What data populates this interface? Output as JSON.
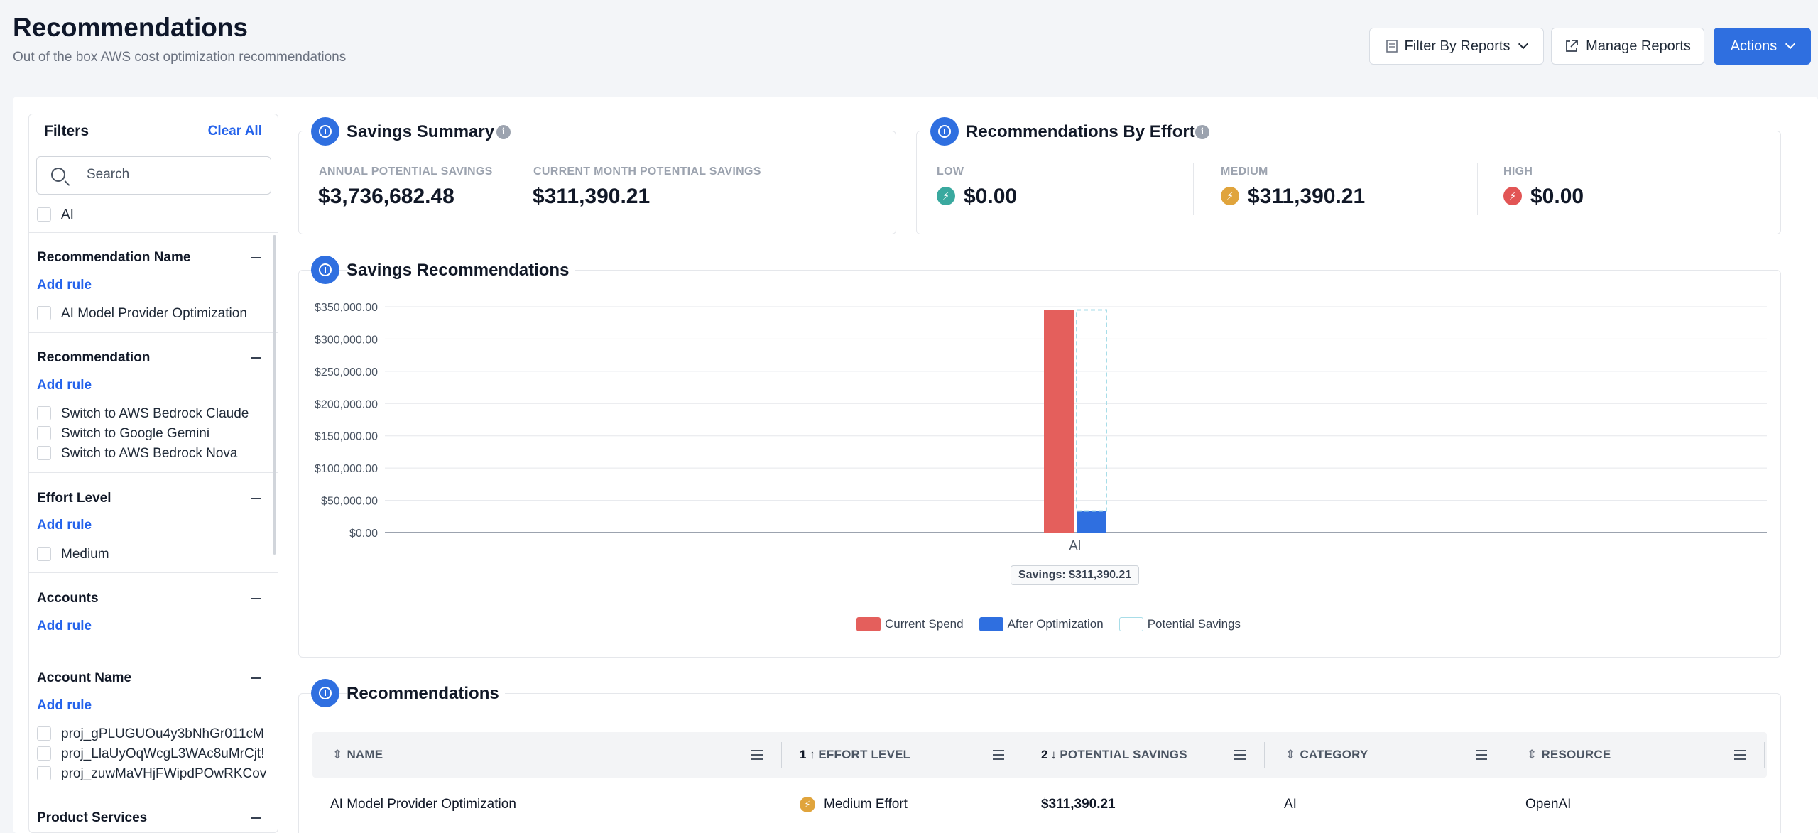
{
  "header": {
    "title": "Recommendations",
    "subtitle": "Out of the box AWS cost optimization recommendations",
    "filter_by_reports": "Filter By Reports",
    "manage_reports": "Manage Reports",
    "actions": "Actions"
  },
  "filters": {
    "title": "Filters",
    "clear_all": "Clear All",
    "search_placeholder": "Search",
    "top_option": "AI",
    "add_rule": "Add rule",
    "sections": {
      "recommendation_name": {
        "title": "Recommendation Name",
        "options": [
          "AI Model Provider Optimization"
        ]
      },
      "recommendation": {
        "title": "Recommendation",
        "options": [
          "Switch to AWS Bedrock Claude",
          "Switch to Google Gemini",
          "Switch to AWS Bedrock Nova"
        ]
      },
      "effort_level": {
        "title": "Effort Level",
        "options": [
          "Medium"
        ]
      },
      "accounts": {
        "title": "Accounts"
      },
      "account_name": {
        "title": "Account Name",
        "options": [
          "proj_gPLUGUOu4y3bNhGr011cM",
          "proj_LlaUyOqWcgL3WAc8uMrCjt!",
          "proj_zuwMaVHjFWipdPOwRKCov"
        ]
      },
      "product_services": {
        "title": "Product Services"
      }
    }
  },
  "savings_summary": {
    "title": "Savings Summary",
    "annual_label": "ANNUAL POTENTIAL SAVINGS",
    "annual_value": "$3,736,682.48",
    "month_label": "CURRENT MONTH POTENTIAL SAVINGS",
    "month_value": "$311,390.21"
  },
  "by_effort": {
    "title": "Recommendations By Effort",
    "low_label": "LOW",
    "low_value": "$0.00",
    "medium_label": "MEDIUM",
    "medium_value": "$311,390.21",
    "high_label": "HIGH",
    "high_value": "$0.00",
    "colors": {
      "low": "#3aa99f",
      "medium": "#e0a43c",
      "high": "#e25555"
    }
  },
  "savings_recs": {
    "title": "Savings Recommendations",
    "tooltip": "Savings: $311,390.21",
    "legend": [
      "Current Spend",
      "After Optimization",
      "Potential Savings"
    ]
  },
  "chart_data": {
    "type": "bar",
    "categories": [
      "AI"
    ],
    "series": [
      {
        "name": "Current Spend",
        "values": [
          345000
        ],
        "color": "#e45f5c"
      },
      {
        "name": "After Optimization",
        "values": [
          33600
        ],
        "color": "#2f6fe0"
      },
      {
        "name": "Potential Savings",
        "values": [
          311390.21
        ],
        "color": "#a8dde8"
      }
    ],
    "y_ticks": [
      "$0.00",
      "$50,000.00",
      "$100,000.00",
      "$150,000.00",
      "$200,000.00",
      "$250,000.00",
      "$300,000.00",
      "$350,000.00"
    ],
    "ylim": [
      0,
      350000
    ],
    "grid": true,
    "legend_position": "bottom-center"
  },
  "recommendations_table": {
    "title": "Recommendations",
    "columns": {
      "name": "NAME",
      "effort": "EFFORT LEVEL",
      "effort_sort": "1",
      "savings": "POTENTIAL SAVINGS",
      "savings_sort": "2",
      "category": "CATEGORY",
      "resource": "RESOURCE"
    },
    "rows": [
      {
        "name": "AI Model Provider Optimization",
        "effort": "Medium Effort",
        "savings": "$311,390.21",
        "category": "AI",
        "resource": "OpenAI"
      }
    ]
  }
}
